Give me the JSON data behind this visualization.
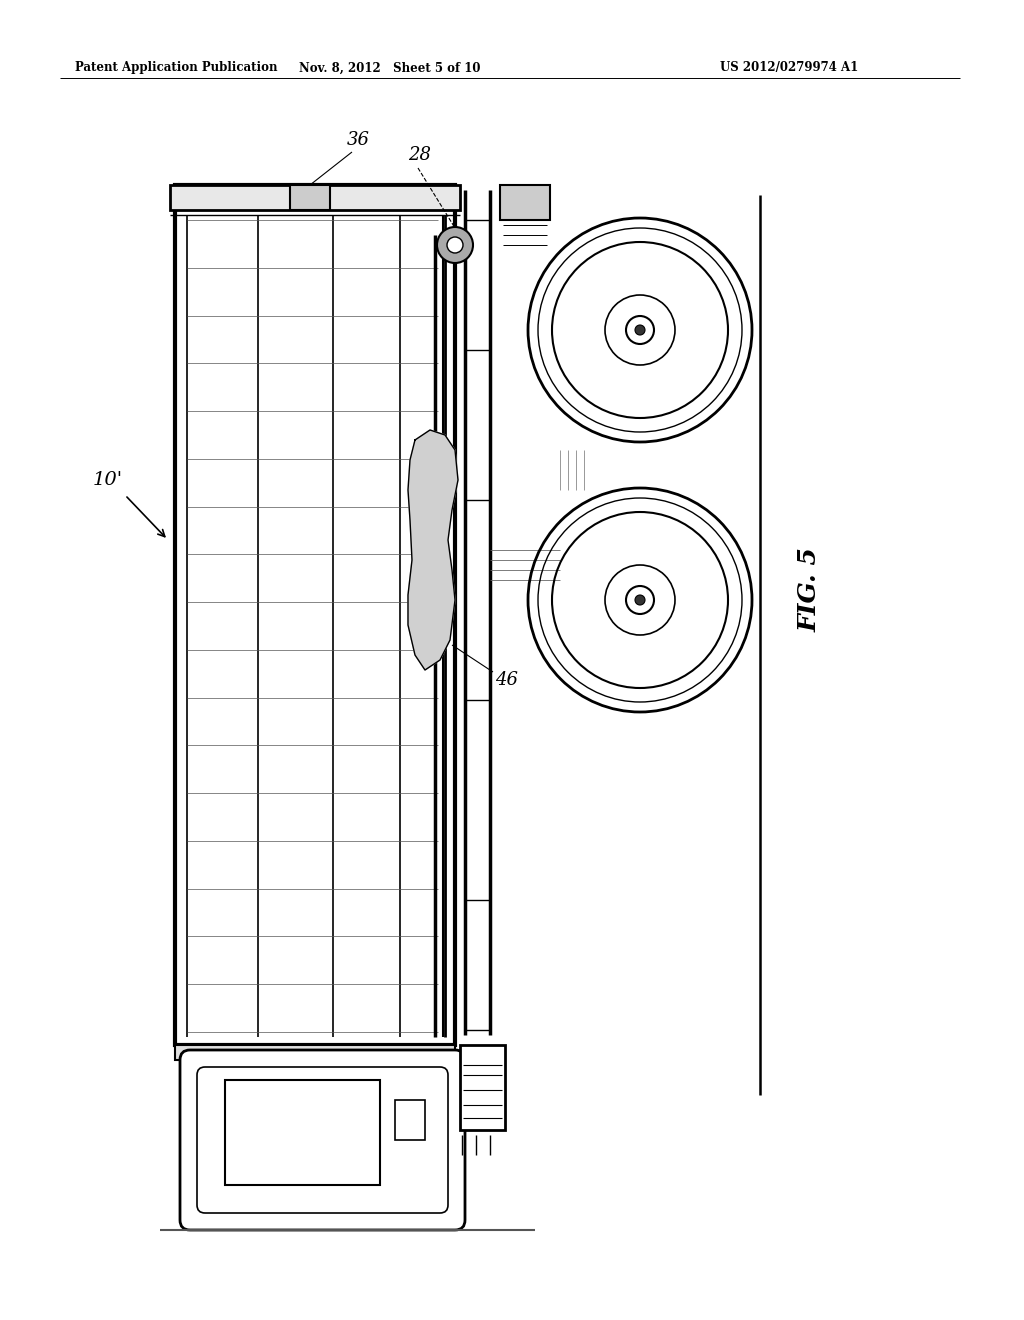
{
  "bg_color": "#ffffff",
  "header_left": "Patent Application Publication",
  "header_mid": "Nov. 8, 2012   Sheet 5 of 10",
  "header_right": "US 2012/0279974 A1",
  "fig_label": "FIG. 5",
  "ref_10prime": "10’",
  "ref_28": "28",
  "ref_36": "36",
  "ref_46": "46",
  "line_color": "#000000"
}
